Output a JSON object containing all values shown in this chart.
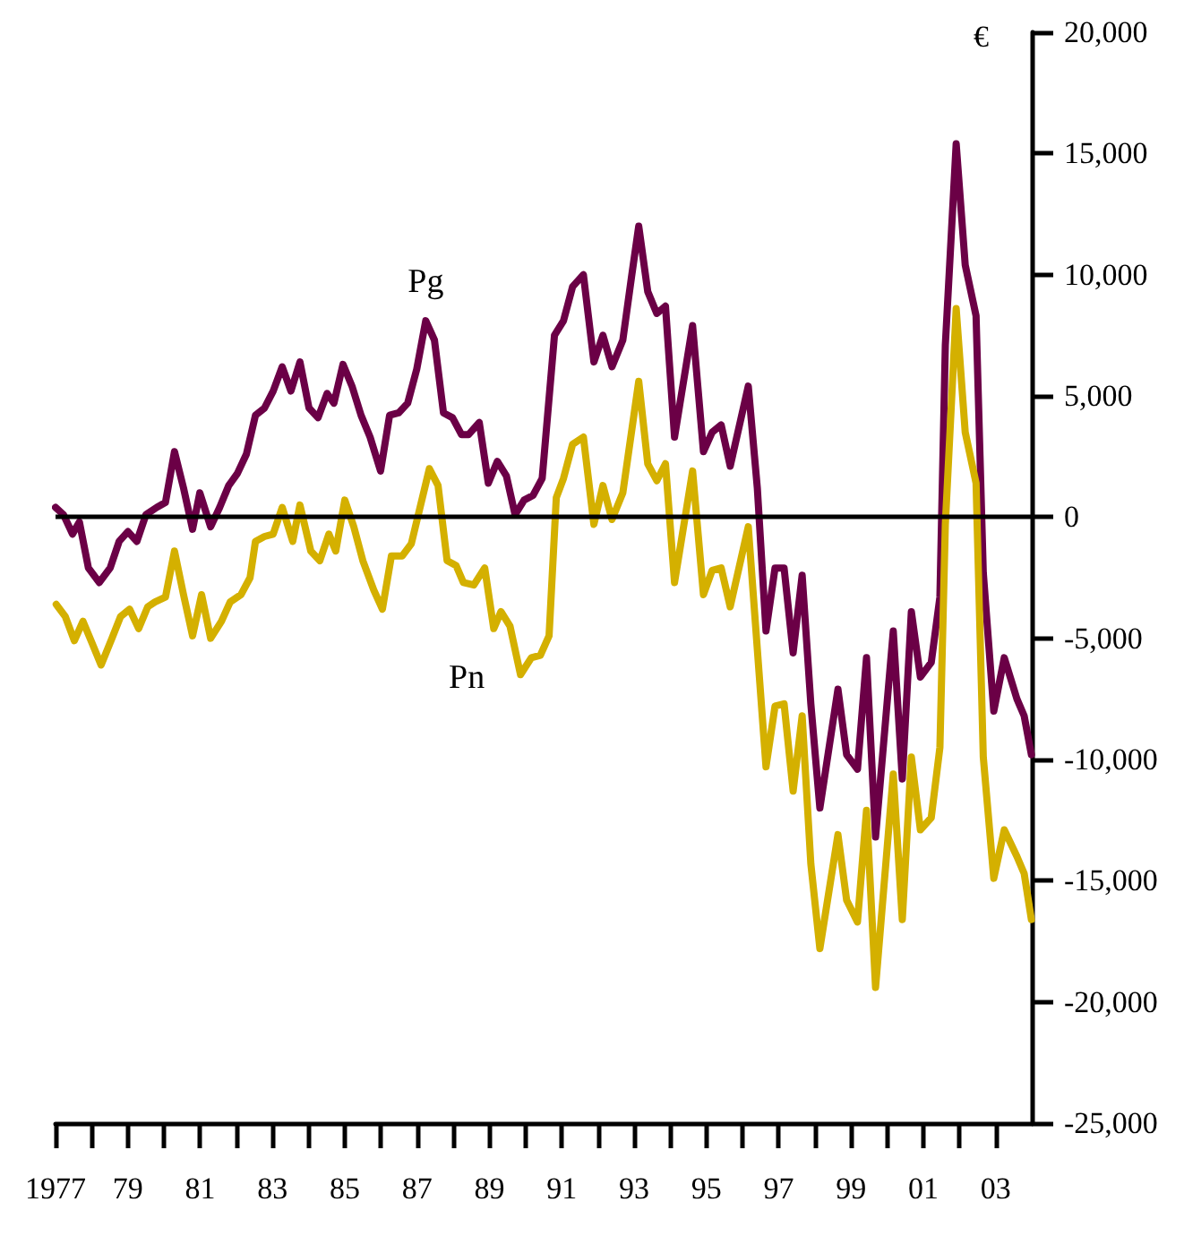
{
  "chart_data": {
    "type": "line",
    "ylabel": "€",
    "xlim": [
      1977,
      2004
    ],
    "xticks": [
      {
        "value": 1977,
        "label": "1977"
      },
      {
        "value": 1978,
        "label": null
      },
      {
        "value": 1979,
        "label": "79"
      },
      {
        "value": 1980,
        "label": null
      },
      {
        "value": 1981,
        "label": "81"
      },
      {
        "value": 1982,
        "label": null
      },
      {
        "value": 1983,
        "label": "83"
      },
      {
        "value": 1984,
        "label": null
      },
      {
        "value": 1985,
        "label": "85"
      },
      {
        "value": 1986,
        "label": null
      },
      {
        "value": 1987,
        "label": "87"
      },
      {
        "value": 1988,
        "label": null
      },
      {
        "value": 1989,
        "label": "89"
      },
      {
        "value": 1990,
        "label": null
      },
      {
        "value": 1991,
        "label": "91"
      },
      {
        "value": 1992,
        "label": null
      },
      {
        "value": 1993,
        "label": "93"
      },
      {
        "value": 1994,
        "label": null
      },
      {
        "value": 1995,
        "label": "95"
      },
      {
        "value": 1996,
        "label": null
      },
      {
        "value": 1997,
        "label": "97"
      },
      {
        "value": 1998,
        "label": null
      },
      {
        "value": 1999,
        "label": "99"
      },
      {
        "value": 2000,
        "label": null
      },
      {
        "value": 2001,
        "label": "01"
      },
      {
        "value": 2002,
        "label": null
      },
      {
        "value": 2003,
        "label": "03"
      }
    ],
    "ylim": [
      -25000,
      20000
    ],
    "yticks": [
      {
        "value": -25000,
        "label": "-25,000"
      },
      {
        "value": -20000,
        "label": "-20,000"
      },
      {
        "value": -15000,
        "label": "-15,000"
      },
      {
        "value": -10000,
        "label": "-10,000"
      },
      {
        "value": -5000,
        "label": "-5,000"
      },
      0,
      {
        "value": 5000,
        "label": "5,000"
      },
      {
        "value": 10000,
        "label": "10,000"
      },
      {
        "value": 15000,
        "label": "15,000"
      },
      {
        "value": 20000,
        "label": "20,000"
      }
    ],
    "grid": false,
    "legend": false,
    "marker": "none",
    "line_style": "solid",
    "ref_lines": [
      {
        "axis": "y",
        "value": 0,
        "color": "#000000"
      }
    ],
    "series": [
      {
        "name": "Pg",
        "color": "#6b0046",
        "x": [
          1977.0,
          1977.22,
          1977.47,
          1977.66,
          1977.91,
          1978.21,
          1978.51,
          1978.76,
          1979.0,
          1979.25,
          1979.5,
          1979.8,
          1980.04,
          1980.29,
          1980.54,
          1980.79,
          1980.99,
          1981.29,
          1981.54,
          1981.79,
          1982.03,
          1982.28,
          1982.53,
          1982.78,
          1983.02,
          1983.27,
          1983.51,
          1983.76,
          1984.01,
          1984.26,
          1984.51,
          1984.7,
          1984.95,
          1985.2,
          1985.45,
          1985.7,
          1985.99,
          1986.24,
          1986.49,
          1986.74,
          1986.99,
          1987.24,
          1987.48,
          1987.73,
          1987.98,
          1988.23,
          1988.42,
          1988.72,
          1988.97,
          1989.22,
          1989.47,
          1989.71,
          1989.96,
          1990.21,
          1990.46,
          1990.8,
          1991.05,
          1991.3,
          1991.6,
          1991.89,
          1992.14,
          1992.39,
          1992.69,
          1992.93,
          1993.13,
          1993.38,
          1993.63,
          1993.87,
          1994.12,
          1994.62,
          1994.92,
          1995.16,
          1995.41,
          1995.66,
          1996.16,
          1996.41,
          1996.65,
          1996.9,
          1997.15,
          1997.4,
          1997.65,
          1997.89,
          1998.14,
          1998.64,
          1998.88,
          1999.18,
          1999.43,
          1999.68,
          2000.17,
          2000.42,
          2000.67,
          2000.92,
          2001.22,
          2001.46,
          2001.61,
          2001.91,
          2002.16,
          2002.46,
          2002.66,
          2002.95,
          2003.24,
          2003.59,
          2003.79,
          2003.99
        ],
        "values": [
          400,
          100,
          -700,
          -200,
          -2100,
          -2700,
          -2100,
          -1000,
          -600,
          -1000,
          100,
          400,
          600,
          2700,
          1200,
          -500,
          1000,
          -400,
          400,
          1300,
          1800,
          2600,
          4200,
          4500,
          5200,
          6200,
          5200,
          6400,
          4500,
          4100,
          5100,
          4700,
          6300,
          5400,
          4200,
          3300,
          1900,
          4200,
          4300,
          4700,
          6100,
          8100,
          7300,
          4300,
          4100,
          3400,
          3400,
          3900,
          1400,
          2300,
          1700,
          100,
          700,
          900,
          1600,
          7500,
          8100,
          9500,
          10000,
          6400,
          7500,
          6200,
          7300,
          9900,
          12000,
          9300,
          8400,
          8700,
          3300,
          7900,
          2700,
          3500,
          3800,
          2100,
          5400,
          1200,
          -4700,
          -2100,
          -2100,
          -5600,
          -2400,
          -7700,
          -12000,
          -7100,
          -9800,
          -10400,
          -5800,
          -13200,
          -4700,
          -10800,
          -3900,
          -6600,
          -6000,
          -3300,
          7100,
          15400,
          10400,
          8300,
          -2300,
          -8000,
          -5800,
          -7500,
          -8200,
          -9800
        ]
      },
      {
        "name": "Pn",
        "color": "#d4b000",
        "x": [
          1977.02,
          1977.27,
          1977.52,
          1977.76,
          1978.01,
          1978.26,
          1978.56,
          1978.8,
          1979.05,
          1979.3,
          1979.55,
          1979.75,
          1980.04,
          1980.29,
          1980.54,
          1980.79,
          1981.04,
          1981.29,
          1981.59,
          1981.83,
          1982.13,
          1982.38,
          1982.53,
          1982.78,
          1983.02,
          1983.27,
          1983.56,
          1983.76,
          1984.06,
          1984.31,
          1984.56,
          1984.75,
          1985.0,
          1985.25,
          1985.5,
          1985.8,
          1986.04,
          1986.29,
          1986.59,
          1986.84,
          1987.34,
          1987.58,
          1987.83,
          1988.08,
          1988.28,
          1988.57,
          1988.87,
          1989.12,
          1989.32,
          1989.57,
          1989.86,
          1990.16,
          1990.41,
          1990.65,
          1990.85,
          1991.05,
          1991.3,
          1991.6,
          1991.89,
          1992.14,
          1992.39,
          1992.69,
          1993.13,
          1993.38,
          1993.63,
          1993.87,
          1994.12,
          1994.62,
          1994.92,
          1995.16,
          1995.41,
          1995.66,
          1996.16,
          1996.65,
          1996.9,
          1997.15,
          1997.4,
          1997.65,
          1997.89,
          1998.14,
          1998.64,
          1998.88,
          1999.18,
          1999.43,
          1999.68,
          2000.17,
          2000.42,
          2000.67,
          2000.92,
          2001.22,
          2001.46,
          2001.61,
          2001.91,
          2002.16,
          2002.46,
          2002.66,
          2002.95,
          2003.24,
          2003.59,
          2003.79,
          2003.99
        ],
        "values": [
          -3600,
          -4100,
          -5100,
          -4300,
          -5200,
          -6100,
          -5000,
          -4100,
          -3800,
          -4600,
          -3700,
          -3500,
          -3300,
          -1400,
          -3200,
          -4900,
          -3200,
          -5000,
          -4300,
          -3500,
          -3200,
          -2500,
          -1000,
          -800,
          -700,
          400,
          -1000,
          500,
          -1400,
          -1800,
          -700,
          -1400,
          700,
          -400,
          -1800,
          -3000,
          -3800,
          -1600,
          -1600,
          -1100,
          2000,
          1300,
          -1800,
          -2000,
          -2700,
          -2800,
          -2100,
          -4600,
          -3900,
          -4500,
          -6500,
          -5800,
          -5700,
          -4900,
          800,
          1600,
          3000,
          3300,
          -300,
          1300,
          -100,
          1000,
          5600,
          2200,
          1500,
          2200,
          -2700,
          1900,
          -3200,
          -2200,
          -2100,
          -3700,
          -400,
          -10300,
          -7800,
          -7700,
          -11300,
          -8200,
          -14300,
          -17800,
          -13100,
          -15800,
          -16700,
          -12100,
          -19400,
          -10600,
          -16600,
          -9900,
          -12900,
          -12400,
          -9500,
          -300,
          8600,
          3500,
          1400,
          -9900,
          -14900,
          -12900,
          -14000,
          -14700,
          -16600
        ]
      }
    ]
  }
}
